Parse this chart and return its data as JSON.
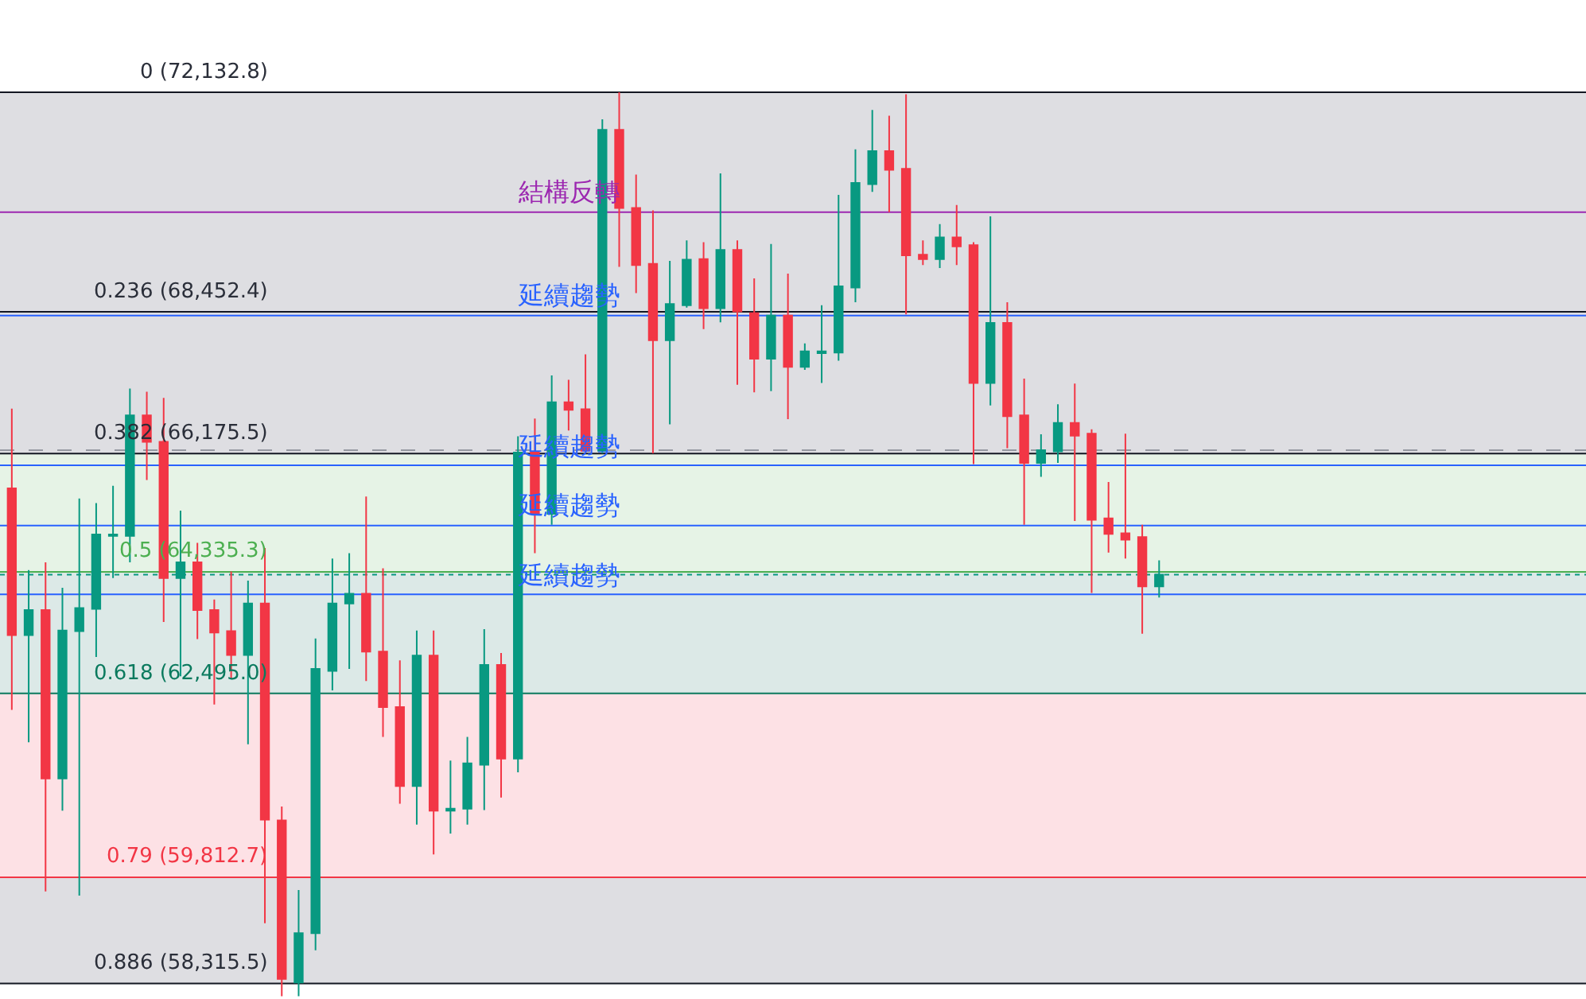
{
  "chart_data": {
    "type": "candlestick",
    "categories": [
      null,
      null,
      null,
      null,
      null,
      null,
      null,
      null,
      null,
      null,
      null,
      null,
      null,
      null,
      null,
      null,
      null,
      null,
      null,
      null,
      null,
      null,
      null,
      null,
      null,
      null,
      null,
      null,
      null,
      null,
      null,
      null,
      null,
      null,
      null,
      null,
      null,
      null,
      null,
      null,
      null,
      null,
      null,
      null,
      null,
      null,
      null,
      null,
      null,
      null,
      null,
      null,
      null,
      null,
      null,
      null,
      null,
      null,
      null,
      null,
      null,
      null,
      null,
      null,
      null,
      null,
      null,
      null,
      null
    ],
    "ohlc": [
      [
        65630,
        66890,
        62250,
        63370
      ],
      [
        63370,
        64360,
        61770,
        63750
      ],
      [
        63750,
        64480,
        59610,
        61240
      ],
      [
        61240,
        64090,
        60770,
        63440
      ],
      [
        63430,
        65470,
        59550,
        63780
      ],
      [
        63770,
        65400,
        63040,
        64910
      ],
      [
        64890,
        65670,
        64240,
        64910
      ],
      [
        64890,
        67210,
        64480,
        66780
      ],
      [
        66780,
        67160,
        65760,
        66360
      ],
      [
        66360,
        67060,
        63570,
        64240
      ],
      [
        64240,
        65280,
        62750,
        64480
      ],
      [
        64480,
        64780,
        63310,
        63750
      ],
      [
        63750,
        63910,
        62330,
        63410
      ],
      [
        63430,
        64340,
        62710,
        63070
      ],
      [
        63070,
        64200,
        61740,
        63850
      ],
      [
        63850,
        64700,
        59160,
        60640
      ],
      [
        60630,
        60830,
        58140,
        58380
      ],
      [
        58330,
        59630,
        58140,
        59020
      ],
      [
        59020,
        63320,
        58780,
        62860
      ],
      [
        62830,
        64540,
        62540,
        63850
      ],
      [
        63850,
        64620,
        62860,
        64000
      ],
      [
        64000,
        65500,
        62680,
        63120
      ],
      [
        63120,
        64390,
        61850,
        62290
      ],
      [
        62290,
        62990,
        60870,
        61130
      ],
      [
        61130,
        63440,
        60570,
        63060
      ],
      [
        63060,
        63440,
        60140,
        60770
      ],
      [
        60770,
        61500,
        60440,
        60800
      ],
      [
        60800,
        61850,
        60570,
        61460
      ],
      [
        61440,
        63460,
        60780,
        62920
      ],
      [
        62920,
        63100,
        60960,
        61530
      ],
      [
        61530,
        66450,
        61330,
        66190
      ],
      [
        66190,
        66730,
        64620,
        65230
      ],
      [
        65230,
        67420,
        65060,
        66990
      ],
      [
        66990,
        67350,
        66540,
        66870
      ],
      [
        66880,
        67760,
        66180,
        66220
      ],
      [
        66220,
        71670,
        66180,
        71490
      ],
      [
        71490,
        72132.8,
        69190,
        70170
      ],
      [
        70170,
        70730,
        68760,
        69220
      ],
      [
        69240,
        70130,
        66180,
        67990
      ],
      [
        67990,
        69290,
        66640,
        68580
      ],
      [
        68560,
        69630,
        68520,
        69310
      ],
      [
        69320,
        69600,
        68170,
        68510
      ],
      [
        68510,
        70750,
        68280,
        69470
      ],
      [
        69470,
        69630,
        67270,
        68460
      ],
      [
        68430,
        69000,
        67150,
        67690
      ],
      [
        67690,
        69570,
        67170,
        68390
      ],
      [
        68390,
        69080,
        66720,
        67560
      ],
      [
        67560,
        67940,
        67510,
        67810
      ],
      [
        67780,
        68560,
        67300,
        67810
      ],
      [
        67790,
        70390,
        67660,
        68870
      ],
      [
        68850,
        71160,
        68610,
        70590
      ],
      [
        70570,
        71830,
        70440,
        71130
      ],
      [
        71130,
        71730,
        70100,
        70810
      ],
      [
        70830,
        72100,
        68410,
        69380
      ],
      [
        69390,
        69630,
        69220,
        69320
      ],
      [
        69320,
        69900,
        69170,
        69680
      ],
      [
        69680,
        70220,
        69220,
        69530
      ],
      [
        69550,
        69600,
        66010,
        67300
      ],
      [
        67300,
        70030,
        66940,
        68270
      ],
      [
        68270,
        68610,
        66260,
        66770
      ],
      [
        66780,
        67370,
        65060,
        66030
      ],
      [
        66030,
        66480,
        65810,
        66230
      ],
      [
        66210,
        66960,
        66030,
        66660
      ],
      [
        66660,
        67290,
        65120,
        66460
      ],
      [
        66490,
        66560,
        64010,
        65140
      ],
      [
        65160,
        65730,
        64630,
        64920
      ],
      [
        64930,
        66490,
        64540,
        64830
      ],
      [
        64870,
        65060,
        63390,
        64110
      ],
      [
        64110,
        64510,
        63940,
        64290
      ]
    ],
    "colors": [
      "#f23645",
      "#089981",
      "#f23645",
      "#089981",
      "#089981",
      "#089981",
      "#089981",
      "#089981",
      "#f23645",
      "#f23645",
      "#089981",
      "#f23645",
      "#f23645",
      "#f23645",
      "#089981",
      "#f23645",
      "#f23645",
      "#089981",
      "#089981",
      "#089981",
      "#089981",
      "#f23645",
      "#f23645",
      "#f23645",
      "#089981",
      "#f23645",
      "#089981",
      "#089981",
      "#089981",
      "#f23645",
      "#089981",
      "#f23645",
      "#089981",
      "#f23645",
      "#f23645",
      "#089981",
      "#f23645",
      "#f23645",
      "#f23645",
      "#089981",
      "#089981",
      "#f23645",
      "#089981",
      "#f23645",
      "#f23645",
      "#089981",
      "#f23645",
      "#089981",
      "#089981",
      "#089981",
      "#089981",
      "#089981",
      "#f23645",
      "#f23645",
      "#f23645",
      "#089981",
      "#f23645",
      "#f23645",
      "#089981",
      "#f23645",
      "#f23645",
      "#089981",
      "#089981",
      "#f23645",
      "#f23645",
      "#f23645",
      "#f23645",
      "#f23645",
      "#089981"
    ],
    "log": "y",
    "ylim": [
      58100,
      73740
    ],
    "tick_labels": false,
    "bands": [
      {
        "axis": "y",
        "from": 72132.8,
        "to": 66175.5,
        "color": "#dedee2"
      },
      {
        "axis": "y",
        "from": 66175.5,
        "to": 64335.3,
        "color": "#e6f3e6"
      },
      {
        "axis": "y",
        "from": 64335.3,
        "to": 62495.0,
        "color": "#dce9e7"
      },
      {
        "axis": "y",
        "from": 62495.0,
        "to": 59812.7,
        "color": "#fde1e5"
      },
      {
        "axis": "y",
        "from": 59812.7,
        "to": 58315.5,
        "color": "#dedee2"
      }
    ],
    "ref_lines": [
      {
        "axis": "y",
        "value": 72132.8,
        "label": "0 (72,132.8)",
        "color": "#131722"
      },
      {
        "axis": "y",
        "value": 68452.4,
        "label": "0.236 (68,452.4)",
        "color": "#131722"
      },
      {
        "axis": "y",
        "value": 66175.5,
        "label": "0.382 (66,175.5)",
        "color": "#131722"
      },
      {
        "axis": "y",
        "value": 64335.3,
        "label": "0.5 (64,335.3)",
        "color": "#4caf50"
      },
      {
        "axis": "y",
        "value": 62495.0,
        "label": "0.618 (62,495.0)",
        "color": "#0b7a5e"
      },
      {
        "axis": "y",
        "value": 59812.7,
        "label": "0.79 (59,812.7)",
        "color": "#f23645"
      },
      {
        "axis": "y",
        "value": 58315.5,
        "label": "0.886 (58,315.5)",
        "color": "#131722"
      },
      {
        "axis": "y",
        "value": 70100,
        "color": "#9c27b0"
      },
      {
        "axis": "y",
        "value": 68390,
        "color": "#2962ff"
      },
      {
        "axis": "y",
        "value": 65990,
        "color": "#2962ff"
      },
      {
        "axis": "y",
        "value": 65050,
        "color": "#2962ff"
      },
      {
        "axis": "y",
        "value": 63990,
        "color": "#2962ff"
      },
      {
        "axis": "y",
        "value": 66230,
        "color": "#9598a1",
        "line_style": "dashed"
      },
      {
        "axis": "y",
        "value": 64290,
        "color": "#089981",
        "line_style": "dotted"
      }
    ],
    "annotations": [
      {
        "text": "結構反轉",
        "y": 70100
      },
      {
        "text": "延續趨勢",
        "y": 68390
      },
      {
        "text": "延續趨勢",
        "y": 65990
      },
      {
        "text": "延續趨勢",
        "y": 65050
      },
      {
        "text": "延續趨勢",
        "y": 63990
      }
    ]
  }
}
